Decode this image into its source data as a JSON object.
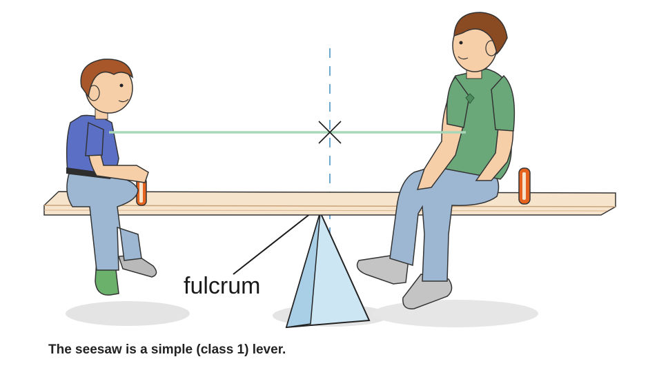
{
  "diagram": {
    "fulcrum_label": "fulcrum",
    "caption": "The seesaw is a simple (class 1) lever.",
    "colors": {
      "board": "#f7e4cc",
      "board_edge": "#d8b38b",
      "handle": "#e6631f",
      "fulcrum": "#cde6f4",
      "balance_line": "#a8d8b8",
      "axis_line": "#6fa8d0",
      "left_shirt": "#5b6fc4",
      "right_shirt": "#6aa87a",
      "jeans": "#9db7d2",
      "hair": "#a8572a",
      "skin": "#f6cfa8"
    }
  }
}
